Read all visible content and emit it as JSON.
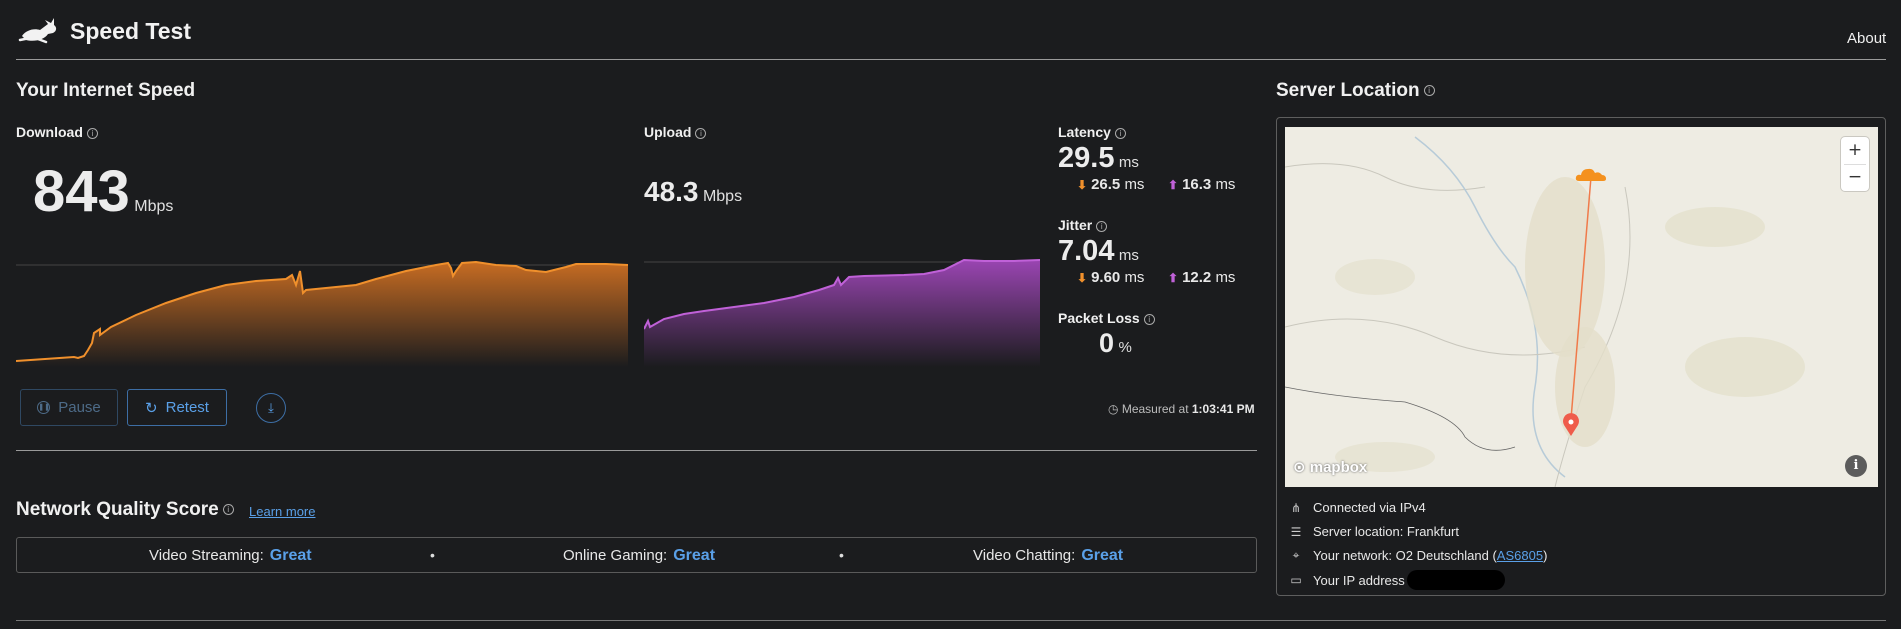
{
  "header": {
    "title": "Speed Test",
    "about": "About"
  },
  "speed": {
    "title": "Your Internet Speed",
    "download": {
      "label": "Download",
      "value": "843",
      "unit": "Mbps"
    },
    "upload": {
      "label": "Upload",
      "value": "48.3",
      "unit": "Mbps"
    },
    "latency": {
      "label": "Latency",
      "value": "29.5",
      "unit": "ms",
      "down": "26.5",
      "up": "16.3",
      "sub_unit": "ms"
    },
    "jitter": {
      "label": "Jitter",
      "value": "7.04",
      "unit": "ms",
      "down": "9.60",
      "up": "12.2",
      "sub_unit": "ms"
    },
    "packet_loss": {
      "label": "Packet Loss",
      "value": "0",
      "unit": "%"
    }
  },
  "controls": {
    "pause": "Pause",
    "retest": "Retest",
    "measured_prefix": "Measured at",
    "measured_time": "1:03:41 PM"
  },
  "network_quality": {
    "title": "Network Quality Score",
    "learn_more": "Learn more",
    "items": [
      {
        "label": "Video Streaming:",
        "value": "Great"
      },
      {
        "label": "Online Gaming:",
        "value": "Great"
      },
      {
        "label": "Video Chatting:",
        "value": "Great"
      }
    ]
  },
  "server": {
    "title": "Server Location",
    "map": {
      "attribution": "mapbox",
      "zoom_in": "+",
      "zoom_out": "−",
      "info": "i"
    },
    "connected": "Connected via IPv4",
    "location": "Server location: Frankfurt",
    "network_prefix": "Your network: O2 Deutschland (",
    "network_as": "AS6805",
    "network_suffix": ")",
    "ip_label": "Your IP address"
  },
  "colors": {
    "download": "#f0902c",
    "upload": "#c061d8",
    "link": "#5aa0e8",
    "background": "#1b1c1e"
  },
  "icons": {
    "logo": "rabbit-icon",
    "info": "info-icon",
    "pause": "pause-icon",
    "retest": "refresh-icon",
    "download": "download-icon",
    "clock": "clock-icon"
  }
}
